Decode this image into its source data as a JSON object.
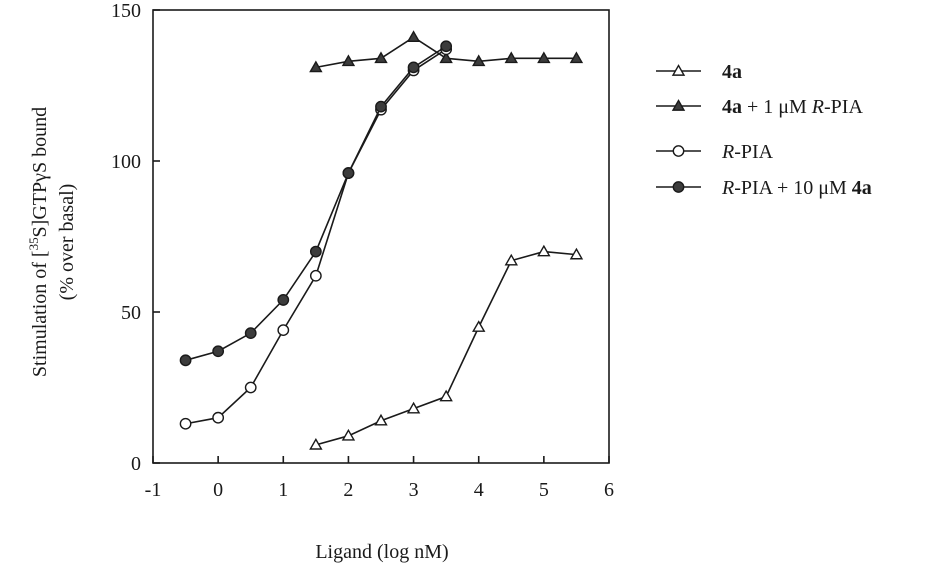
{
  "chart_data": {
    "type": "line",
    "title": "",
    "xlabel": "Ligand (log nM)",
    "ylabel": {
      "line1_prefix": "Stimulation of [",
      "line1_sup": "35",
      "line1_suffix": "S]GTPγS bound",
      "line2": "(% over basal)"
    },
    "xlim": [
      -1,
      6
    ],
    "ylim": [
      0,
      150
    ],
    "x_ticks": [
      -1,
      0,
      1,
      2,
      3,
      4,
      5,
      6
    ],
    "y_ticks": [
      0,
      50,
      100,
      150
    ],
    "grid": false,
    "legend_position": "right",
    "series": [
      {
        "legend": {
          "base": "4a",
          "base_bold": true,
          "middle": "",
          "italic": "",
          "tail": "",
          "tail_bold": ""
        },
        "marker": "triangle-open",
        "x": [
          1.5,
          2,
          2.5,
          3,
          3.5,
          4,
          4.5,
          5,
          5.5
        ],
        "y": [
          6,
          9,
          14,
          18,
          22,
          45,
          67,
          70,
          69
        ]
      },
      {
        "legend": {
          "base": "4a",
          "base_bold": true,
          "middle": " + 1 μM ",
          "italic": "R",
          "tail": "-PIA",
          "tail_bold": ""
        },
        "marker": "triangle-filled",
        "x": [
          1.5,
          2,
          2.5,
          3,
          3.5,
          4,
          4.5,
          5,
          5.5
        ],
        "y": [
          131,
          133,
          134,
          141,
          134,
          133,
          134,
          134,
          134
        ]
      },
      {
        "legend": {
          "base": "",
          "base_bold": false,
          "middle": "",
          "italic": "R",
          "tail": "-PIA",
          "tail_bold": ""
        },
        "marker": "circle-open",
        "x": [
          -0.5,
          0,
          0.5,
          1,
          1.5,
          2,
          2.5,
          3,
          3.5
        ],
        "y": [
          13,
          15,
          25,
          44,
          62,
          96,
          117,
          130,
          137
        ]
      },
      {
        "legend": {
          "base": "",
          "base_bold": false,
          "middle": "",
          "italic": "R",
          "tail": "-PIA + 10 μM ",
          "tail_bold": "4a"
        },
        "marker": "circle-filled",
        "x": [
          -0.5,
          0,
          0.5,
          1,
          1.5,
          2,
          2.5,
          3,
          3.5
        ],
        "y": [
          34,
          37,
          43,
          54,
          70,
          96,
          118,
          131,
          138
        ]
      }
    ]
  }
}
